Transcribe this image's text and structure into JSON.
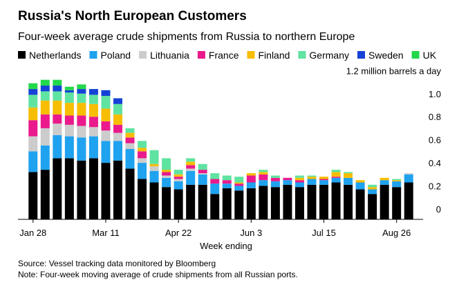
{
  "chart_data": {
    "type": "stacked_bar",
    "title": "Russia's North European Customers",
    "subtitle": "Four-week average crude shipments from Russia to northern Europe",
    "x_label": "Week ending",
    "source": "Source: Vessel tracking data monitored by Bloomberg",
    "note": "Note: Four-week moving average of crude shipments from all Russian ports.",
    "categories": [
      "Jan 28",
      null,
      null,
      null,
      null,
      null,
      "Mar 11",
      null,
      null,
      null,
      null,
      null,
      "Apr 22",
      null,
      null,
      null,
      null,
      null,
      "Jun 3",
      null,
      null,
      null,
      null,
      null,
      "Jul 15",
      null,
      null,
      null,
      null,
      null,
      "Aug 26",
      null
    ],
    "series": [
      {
        "name": "Netherlands",
        "color": "#000000",
        "values": [
          0.41,
          0.43,
          0.53,
          0.53,
          0.51,
          0.53,
          0.49,
          0.51,
          0.44,
          0.35,
          0.32,
          0.28,
          0.26,
          0.3,
          0.3,
          0.22,
          0.27,
          0.25,
          0.27,
          0.29,
          0.28,
          0.3,
          0.28,
          0.3,
          0.3,
          0.32,
          0.3,
          0.26,
          0.22,
          0.3,
          0.28,
          0.32
        ]
      },
      {
        "name": "Poland",
        "color": "#1fa2ef",
        "values": [
          0.18,
          0.21,
          0.2,
          0.19,
          0.2,
          0.19,
          0.19,
          0.17,
          0.17,
          0.14,
          0.1,
          0.08,
          0.07,
          0.12,
          0.09,
          0.09,
          0.04,
          0.04,
          0.05,
          0.05,
          0.05,
          0.04,
          0.04,
          0.05,
          0.04,
          0.04,
          0.06,
          0.06,
          0.04,
          0.04,
          0.05,
          0.07
        ]
      },
      {
        "name": "Lithuania",
        "color": "#cccccc",
        "values": [
          0.13,
          0.15,
          0.1,
          0.1,
          0.1,
          0.08,
          0.09,
          0.07,
          0.05,
          0.04,
          0.04,
          0.02,
          0.02,
          0.02,
          0.01,
          0,
          0,
          0,
          0,
          0,
          0,
          0,
          0,
          0,
          0,
          0,
          0,
          0,
          0,
          0,
          0,
          0.01
        ]
      },
      {
        "name": "France",
        "color": "#ea1a8c",
        "values": [
          0.14,
          0.12,
          0.08,
          0.08,
          0.09,
          0.09,
          0.08,
          0.07,
          0.05,
          0.06,
          0,
          0.03,
          0.02,
          0.03,
          0.03,
          0.04,
          0.03,
          0.02,
          0.06,
          0.05,
          0.03,
          0.02,
          0.02,
          0,
          0.01,
          0.01,
          0,
          0,
          0,
          0,
          0,
          0
        ]
      },
      {
        "name": "Finland",
        "color": "#f7bd00",
        "values": [
          0.11,
          0.12,
          0.12,
          0.11,
          0.11,
          0.11,
          0.11,
          0.09,
          0.04,
          0.03,
          0.02,
          0.02,
          0.02,
          0.03,
          0,
          0,
          0,
          0.01,
          0.02,
          0.02,
          0,
          0,
          0.02,
          0.02,
          0.02,
          0.04,
          0.04,
          0.02,
          0.02,
          0.02,
          0.01,
          0
        ]
      },
      {
        "name": "Germany",
        "color": "#5fe3a1",
        "values": [
          0.11,
          0.08,
          0.08,
          0.09,
          0.08,
          0.08,
          0.11,
          0.09,
          0.04,
          0.06,
          0.12,
          0.1,
          0.04,
          0.03,
          0.05,
          0.05,
          0.04,
          0.05,
          0,
          0.02,
          0.02,
          0,
          0.02,
          0.01,
          0,
          0.02,
          0.01,
          0,
          0.02,
          0,
          0.01,
          0
        ]
      },
      {
        "name": "Sweden",
        "color": "#1542d6",
        "values": [
          0.05,
          0.05,
          0.05,
          0.02,
          0.04,
          0.05,
          0.05,
          0.05,
          0,
          0,
          0,
          0,
          0,
          0,
          0,
          0,
          0,
          0,
          0,
          0,
          0,
          0,
          0,
          0,
          0,
          0,
          0,
          0,
          0,
          0,
          0,
          0
        ]
      },
      {
        "name": "UK",
        "color": "#22d84a",
        "values": [
          0.05,
          0.05,
          0.05,
          0.03,
          0.04,
          0,
          0,
          0,
          0,
          0,
          0,
          0,
          0,
          0,
          0,
          0,
          0,
          0,
          0,
          0,
          0,
          0,
          0,
          0,
          0,
          0,
          0,
          0,
          0,
          0,
          0,
          0
        ]
      }
    ],
    "ylim": [
      0,
      1.25
    ],
    "yticks": [
      0,
      0.2,
      0.4,
      0.6,
      0.8,
      {
        "value": 1,
        "label": "1.0"
      },
      {
        "value": 1.2,
        "label": "1.2 million barrels a day"
      }
    ]
  }
}
